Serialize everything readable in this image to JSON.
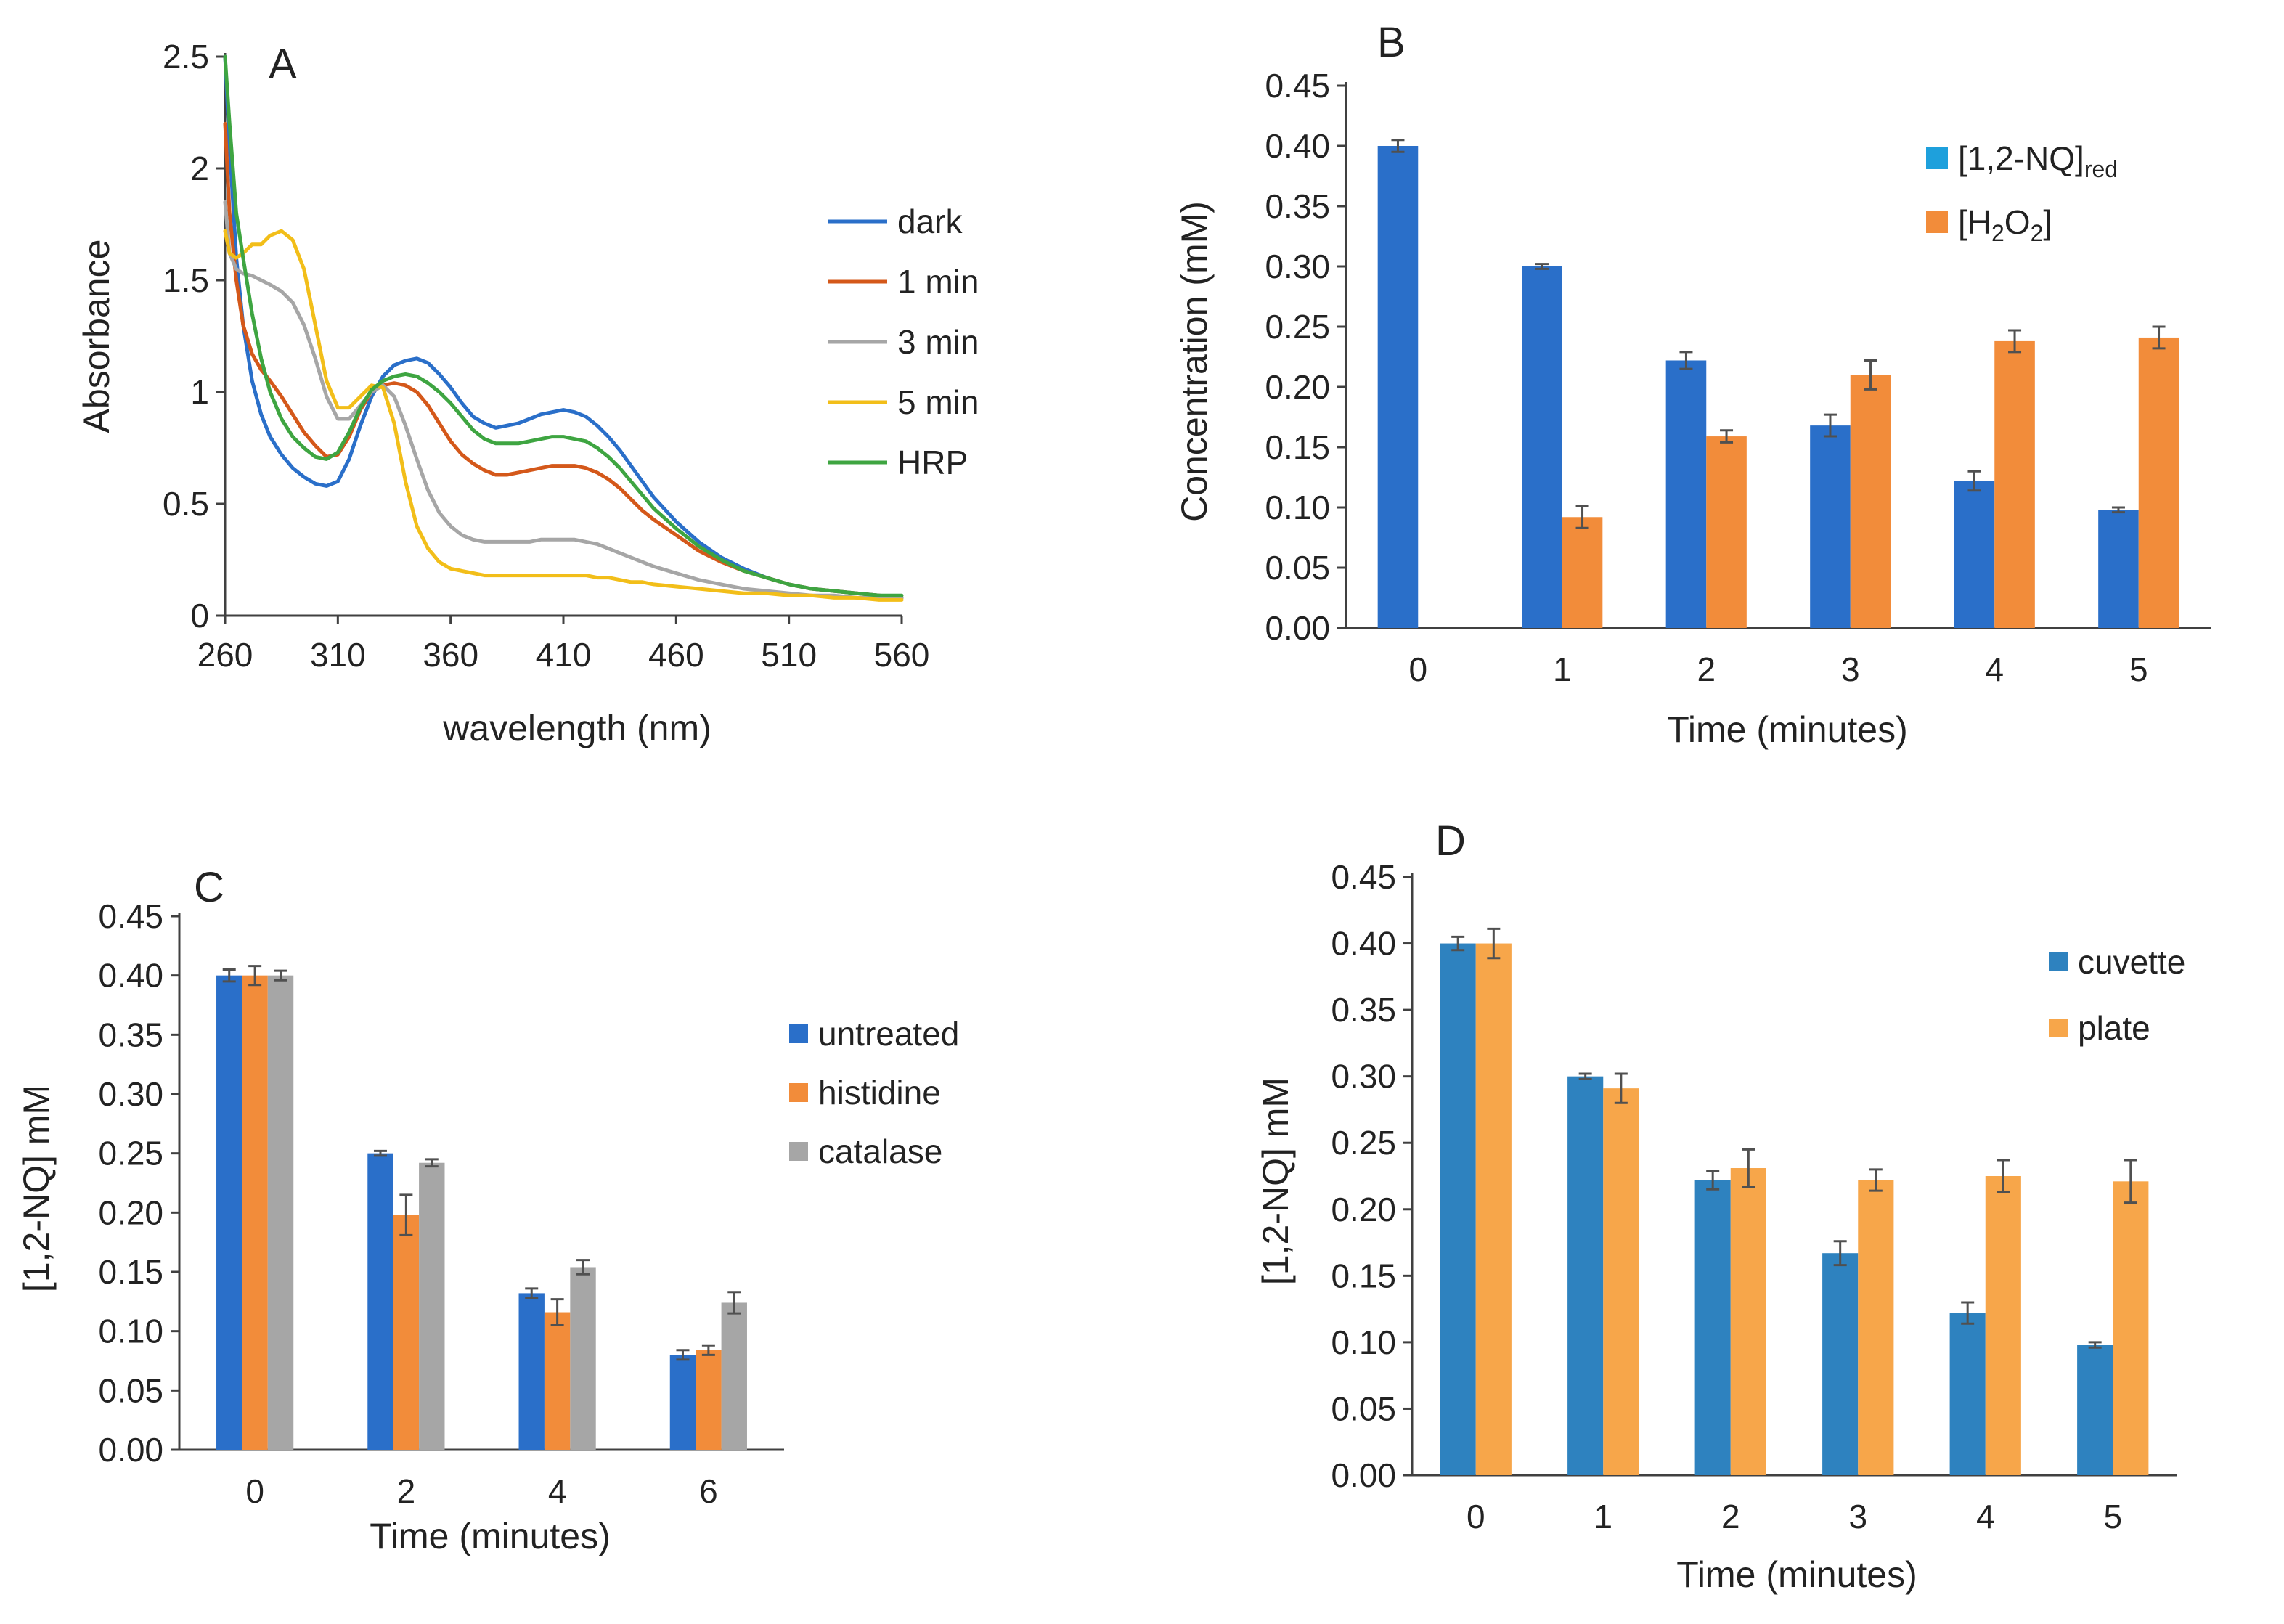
{
  "colors": {
    "dark": "#2a6fc9",
    "1min": "#d4581a",
    "3min": "#a6a6a6",
    "5min": "#f2be19",
    "HRP": "#3ea541",
    "blue": "#2a6fc9",
    "orange": "#f28c3a",
    "gray": "#a6a6a6",
    "steelblue": "#2e82bf",
    "lightorange": "#f7a64a",
    "legend_cyan": "#1ea0dc",
    "errorbar": "#505050",
    "axis": "#404040"
  },
  "chart_data": [
    {
      "id": "A",
      "panel_label": "A",
      "type": "line",
      "xlabel": "wavelength  (nm)",
      "ylabel": "Absorbance",
      "xlim": [
        260,
        560
      ],
      "ylim": [
        0,
        2.5
      ],
      "xticks": [
        260,
        310,
        360,
        410,
        460,
        510,
        560
      ],
      "yticks": [
        0,
        0.5,
        1,
        1.5,
        2,
        2.5
      ],
      "xtick_labels": [
        "260",
        "310",
        "360",
        "410",
        "460",
        "510",
        "560"
      ],
      "ytick_labels": [
        "0",
        "0.5",
        "1",
        "1.5",
        "2",
        "2.5"
      ],
      "legend": [
        "dark",
        "1 min",
        "3 min",
        "5 min",
        "HRP"
      ],
      "series": [
        {
          "name": "dark",
          "color_key": "dark",
          "x": [
            260,
            262,
            265,
            268,
            272,
            276,
            280,
            285,
            290,
            295,
            300,
            305,
            310,
            315,
            320,
            325,
            330,
            335,
            340,
            345,
            350,
            355,
            360,
            365,
            370,
            375,
            380,
            385,
            390,
            395,
            400,
            405,
            410,
            415,
            420,
            425,
            430,
            435,
            440,
            445,
            450,
            460,
            470,
            480,
            490,
            500,
            510,
            520,
            530,
            540,
            550,
            560
          ],
          "y": [
            2.5,
            2.1,
            1.6,
            1.3,
            1.05,
            0.9,
            0.8,
            0.72,
            0.66,
            0.62,
            0.59,
            0.58,
            0.6,
            0.7,
            0.85,
            0.98,
            1.07,
            1.12,
            1.14,
            1.15,
            1.13,
            1.08,
            1.02,
            0.95,
            0.89,
            0.86,
            0.84,
            0.85,
            0.86,
            0.88,
            0.9,
            0.91,
            0.92,
            0.91,
            0.89,
            0.85,
            0.8,
            0.74,
            0.67,
            0.6,
            0.53,
            0.42,
            0.33,
            0.26,
            0.21,
            0.17,
            0.14,
            0.12,
            0.11,
            0.1,
            0.09,
            0.08
          ]
        },
        {
          "name": "1 min",
          "color_key": "1min",
          "x": [
            260,
            262,
            265,
            268,
            272,
            276,
            280,
            285,
            290,
            295,
            300,
            305,
            310,
            315,
            320,
            325,
            330,
            335,
            340,
            345,
            350,
            355,
            360,
            365,
            370,
            375,
            380,
            385,
            390,
            395,
            400,
            405,
            410,
            415,
            420,
            425,
            430,
            435,
            440,
            445,
            450,
            460,
            470,
            480,
            490,
            500,
            510,
            520,
            530,
            540,
            550,
            560
          ],
          "y": [
            2.2,
            1.8,
            1.5,
            1.3,
            1.17,
            1.1,
            1.05,
            0.98,
            0.9,
            0.82,
            0.76,
            0.71,
            0.72,
            0.8,
            0.92,
            1.0,
            1.03,
            1.04,
            1.03,
            1.0,
            0.94,
            0.86,
            0.78,
            0.72,
            0.68,
            0.65,
            0.63,
            0.63,
            0.64,
            0.65,
            0.66,
            0.67,
            0.67,
            0.67,
            0.66,
            0.64,
            0.61,
            0.57,
            0.52,
            0.47,
            0.43,
            0.36,
            0.29,
            0.24,
            0.2,
            0.17,
            0.14,
            0.12,
            0.11,
            0.1,
            0.09,
            0.08
          ]
        },
        {
          "name": "3 min",
          "color_key": "3min",
          "x": [
            260,
            262,
            265,
            268,
            272,
            276,
            280,
            285,
            290,
            295,
            300,
            305,
            310,
            315,
            320,
            325,
            330,
            335,
            340,
            345,
            350,
            355,
            360,
            365,
            370,
            375,
            380,
            385,
            390,
            395,
            400,
            405,
            410,
            415,
            420,
            425,
            430,
            435,
            440,
            445,
            450,
            460,
            470,
            480,
            490,
            500,
            510,
            520,
            530,
            540,
            550,
            560
          ],
          "y": [
            1.85,
            1.62,
            1.55,
            1.53,
            1.52,
            1.5,
            1.48,
            1.45,
            1.4,
            1.3,
            1.15,
            0.98,
            0.88,
            0.88,
            0.94,
            1.0,
            1.03,
            0.98,
            0.85,
            0.7,
            0.56,
            0.46,
            0.4,
            0.36,
            0.34,
            0.33,
            0.33,
            0.33,
            0.33,
            0.33,
            0.34,
            0.34,
            0.34,
            0.34,
            0.33,
            0.32,
            0.3,
            0.28,
            0.26,
            0.24,
            0.22,
            0.19,
            0.16,
            0.14,
            0.12,
            0.11,
            0.1,
            0.09,
            0.09,
            0.08,
            0.08,
            0.08
          ]
        },
        {
          "name": "5 min",
          "color_key": "5min",
          "x": [
            260,
            262,
            265,
            268,
            272,
            276,
            280,
            285,
            290,
            295,
            300,
            305,
            310,
            315,
            320,
            325,
            330,
            335,
            340,
            345,
            350,
            355,
            360,
            365,
            370,
            375,
            380,
            385,
            390,
            395,
            400,
            405,
            410,
            415,
            420,
            425,
            430,
            435,
            440,
            445,
            450,
            460,
            470,
            480,
            490,
            500,
            510,
            520,
            530,
            540,
            550,
            560
          ],
          "y": [
            1.72,
            1.62,
            1.6,
            1.62,
            1.66,
            1.66,
            1.7,
            1.72,
            1.68,
            1.55,
            1.3,
            1.05,
            0.93,
            0.93,
            0.98,
            1.03,
            1.02,
            0.86,
            0.6,
            0.4,
            0.3,
            0.24,
            0.21,
            0.2,
            0.19,
            0.18,
            0.18,
            0.18,
            0.18,
            0.18,
            0.18,
            0.18,
            0.18,
            0.18,
            0.18,
            0.17,
            0.17,
            0.16,
            0.15,
            0.15,
            0.14,
            0.13,
            0.12,
            0.11,
            0.1,
            0.1,
            0.09,
            0.09,
            0.08,
            0.08,
            0.07,
            0.07
          ]
        },
        {
          "name": "HRP",
          "color_key": "HRP",
          "x": [
            260,
            262,
            265,
            268,
            272,
            276,
            280,
            285,
            290,
            295,
            300,
            305,
            310,
            315,
            320,
            325,
            330,
            335,
            340,
            345,
            350,
            355,
            360,
            365,
            370,
            375,
            380,
            385,
            390,
            395,
            400,
            405,
            410,
            415,
            420,
            425,
            430,
            435,
            440,
            445,
            450,
            460,
            470,
            480,
            490,
            500,
            510,
            520,
            530,
            540,
            550,
            560
          ],
          "y": [
            2.5,
            2.2,
            1.8,
            1.6,
            1.35,
            1.15,
            1.0,
            0.88,
            0.8,
            0.75,
            0.71,
            0.7,
            0.73,
            0.82,
            0.93,
            1.01,
            1.05,
            1.07,
            1.08,
            1.07,
            1.04,
            1.0,
            0.95,
            0.89,
            0.83,
            0.79,
            0.77,
            0.77,
            0.77,
            0.78,
            0.79,
            0.8,
            0.8,
            0.79,
            0.78,
            0.75,
            0.71,
            0.66,
            0.6,
            0.54,
            0.48,
            0.39,
            0.31,
            0.25,
            0.2,
            0.17,
            0.14,
            0.12,
            0.11,
            0.1,
            0.09,
            0.09
          ]
        }
      ]
    },
    {
      "id": "B",
      "panel_label": "B",
      "type": "bar",
      "xlabel": "Time (minutes)",
      "ylabel": "Concentration (mM)",
      "ylim": [
        0,
        0.45
      ],
      "yticks": [
        0,
        0.05,
        0.1,
        0.15,
        0.2,
        0.25,
        0.3,
        0.35,
        0.4,
        0.45
      ],
      "ytick_labels": [
        "0.00",
        "0.05",
        "0.10",
        "0.15",
        "0.20",
        "0.25",
        "0.30",
        "0.35",
        "0.40",
        "0.45"
      ],
      "categories": [
        "0",
        "1",
        "2",
        "3",
        "4",
        "5"
      ],
      "series": [
        {
          "name": "[1,2-NQ]red",
          "legend_main": "[1,2-NQ]",
          "legend_sub": "red",
          "legend_tail": "",
          "color_key": "blue",
          "legend_color_key": "legend_cyan",
          "values": [
            0.4,
            0.3,
            0.222,
            0.168,
            0.122,
            0.098
          ],
          "errors": [
            0.005,
            0.002,
            0.007,
            0.009,
            0.008,
            0.002
          ]
        },
        {
          "name": "[H2O2]",
          "legend_main": "[H",
          "legend_sub": "2",
          "legend_mid": "O",
          "legend_sub2": "2",
          "legend_tail": "]",
          "color_key": "orange",
          "legend_color_key": "orange",
          "values": [
            null,
            0.092,
            0.159,
            0.21,
            0.238,
            0.241
          ],
          "errors": [
            null,
            0.009,
            0.005,
            0.012,
            0.009,
            0.009
          ]
        }
      ]
    },
    {
      "id": "C",
      "panel_label": "C",
      "type": "bar",
      "xlabel": "Time (minutes)",
      "ylabel": "[1,2-NQ] mM",
      "ylim": [
        0,
        0.45
      ],
      "yticks": [
        0,
        0.05,
        0.1,
        0.15,
        0.2,
        0.25,
        0.3,
        0.35,
        0.4,
        0.45
      ],
      "ytick_labels": [
        "0.00",
        "0.05",
        "0.10",
        "0.15",
        "0.20",
        "0.25",
        "0.30",
        "0.35",
        "0.40",
        "0.45"
      ],
      "categories": [
        "0",
        "2",
        "4",
        "6"
      ],
      "series": [
        {
          "name": "untreated",
          "color_key": "blue",
          "values": [
            0.4,
            0.25,
            0.132,
            0.08
          ],
          "errors": [
            0.005,
            0.002,
            0.004,
            0.004
          ]
        },
        {
          "name": "histidine",
          "color_key": "orange",
          "values": [
            0.4,
            0.198,
            0.116,
            0.084
          ],
          "errors": [
            0.008,
            0.017,
            0.011,
            0.004
          ]
        },
        {
          "name": "catalase",
          "color_key": "gray",
          "values": [
            0.4,
            0.242,
            0.154,
            0.124
          ],
          "errors": [
            0.004,
            0.003,
            0.006,
            0.009
          ]
        }
      ]
    },
    {
      "id": "D",
      "panel_label": "D",
      "type": "bar",
      "xlabel": "Time (minutes)",
      "ylabel": "[1,2-NQ] mM",
      "ylim": [
        0,
        0.45
      ],
      "yticks": [
        0,
        0.05,
        0.1,
        0.15,
        0.2,
        0.25,
        0.3,
        0.35,
        0.4,
        0.45
      ],
      "ytick_labels": [
        "0.00",
        "0.05",
        "0.10",
        "0.15",
        "0.20",
        "0.25",
        "0.30",
        "0.35",
        "0.40",
        "0.45"
      ],
      "categories": [
        "0",
        "1",
        "2",
        "3",
        "4",
        "5"
      ],
      "series": [
        {
          "name": "cuvette",
          "color_key": "steelblue",
          "values": [
            0.4,
            0.3,
            0.222,
            0.167,
            0.122,
            0.098
          ],
          "errors": [
            0.005,
            0.002,
            0.007,
            0.009,
            0.008,
            0.002
          ]
        },
        {
          "name": "plate",
          "color_key": "lightorange",
          "values": [
            0.4,
            0.291,
            0.231,
            0.222,
            0.225,
            0.221
          ],
          "errors": [
            0.011,
            0.011,
            0.014,
            0.008,
            0.012,
            0.016
          ]
        }
      ]
    }
  ]
}
